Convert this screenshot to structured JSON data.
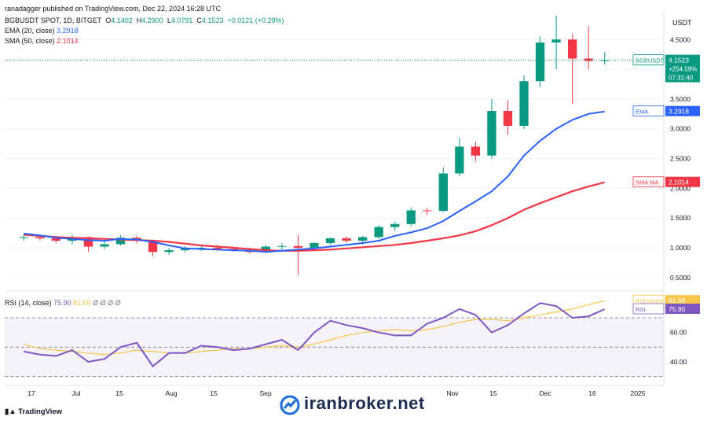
{
  "header": {
    "published": "ranadagger published on TradingView.com, Dec 22, 2024 16:28 UTC",
    "symbol": "BGBUSDT SPOT, 1D, BITGET",
    "ohlc": {
      "o_label": "O",
      "o": "4.1402",
      "h_label": "H",
      "h": "4.2900",
      "l_label": "L",
      "l": "4.0791",
      "c_label": "C",
      "c": "4.1523",
      "change": "+0.0121 (+0.29%)"
    },
    "ema_label": "EMA (20, close)",
    "ema_value": "3.2918",
    "sma_label": "SMA (50, close)",
    "sma_value": "2.1014",
    "rsi_label": "RSI (14, close)",
    "rsi_value": "75.90",
    "rsi_ma_value": "81.69",
    "rsi_extra": "Ø Ø Ø Ø"
  },
  "price_scale": {
    "currency": "USDT",
    "ticks": [
      "4.5000",
      "4.0000",
      "3.5000",
      "3.0000",
      "2.5000",
      "2.0000",
      "1.5000",
      "1.0000",
      "0.5000"
    ]
  },
  "tags": {
    "last": {
      "name": "BGBUSDT",
      "value": "4.1523",
      "change": "+254.59%",
      "countdown": "07:31:40",
      "color": "#089981"
    },
    "ema": {
      "name": "EMA",
      "value": "3.2918",
      "color": "#2962ff"
    },
    "sma": {
      "name": "SMA:MA",
      "value": "2.1014",
      "color": "#f23645"
    },
    "rsi_ma": {
      "name": "RSI-based MA",
      "value": "81.69",
      "color": "#f7c548"
    },
    "rsi": {
      "name": "RSI",
      "value": "75.90",
      "color": "#7e57c2"
    }
  },
  "rsi_scale": {
    "ticks": [
      "60.00",
      "40.00"
    ]
  },
  "time_axis": [
    "17",
    "Jul",
    "15",
    "Aug",
    "15",
    "Sep",
    "Nov",
    "15",
    "Dec",
    "16",
    "2025"
  ],
  "branding": {
    "tv": "TradingView",
    "watermark": "iranbroker.net"
  },
  "colors": {
    "up": "#089981",
    "down": "#f23645",
    "ema": "#2962ff",
    "sma": "#f23645",
    "rsi": "#7e57c2",
    "rsi_ma": "#f7c548"
  },
  "chart_data": {
    "type": "candlestick",
    "title": "BGBUSDT SPOT, 1D, BITGET",
    "price_range": [
      0.3,
      4.9
    ],
    "series": [
      {
        "name": "BGBUSDT",
        "kind": "candles",
        "points": [
          {
            "d": "Jun 10",
            "o": 1.17,
            "h": 1.22,
            "l": 1.12,
            "c": 1.18
          },
          {
            "d": "Jun 17",
            "o": 1.18,
            "h": 1.21,
            "l": 1.12,
            "c": 1.16
          },
          {
            "d": "Jun 24",
            "o": 1.16,
            "h": 1.19,
            "l": 1.08,
            "c": 1.12
          },
          {
            "d": "Jul 1",
            "o": 1.12,
            "h": 1.22,
            "l": 1.06,
            "c": 1.18
          },
          {
            "d": "Jul 8",
            "o": 1.18,
            "h": 1.19,
            "l": 0.93,
            "c": 1.02
          },
          {
            "d": "Jul 15",
            "o": 1.02,
            "h": 1.12,
            "l": 0.98,
            "c": 1.06
          },
          {
            "d": "Jul 22",
            "o": 1.06,
            "h": 1.21,
            "l": 1.04,
            "c": 1.17
          },
          {
            "d": "Jul 29",
            "o": 1.17,
            "h": 1.2,
            "l": 1.08,
            "c": 1.12
          },
          {
            "d": "Aug 5",
            "o": 1.12,
            "h": 1.14,
            "l": 0.86,
            "c": 0.93
          },
          {
            "d": "Aug 12",
            "o": 0.93,
            "h": 1.0,
            "l": 0.88,
            "c": 0.96
          },
          {
            "d": "Aug 19",
            "o": 0.96,
            "h": 1.03,
            "l": 0.92,
            "c": 0.99
          },
          {
            "d": "Aug 26",
            "o": 0.99,
            "h": 1.06,
            "l": 0.95,
            "c": 1.0
          },
          {
            "d": "Sep 2",
            "o": 1.0,
            "h": 1.05,
            "l": 0.94,
            "c": 0.98
          },
          {
            "d": "Sep 9",
            "o": 0.98,
            "h": 1.02,
            "l": 0.93,
            "c": 0.96
          },
          {
            "d": "Sep 16",
            "o": 0.96,
            "h": 1.0,
            "l": 0.9,
            "c": 0.93
          },
          {
            "d": "Sep 23",
            "o": 0.93,
            "h": 1.05,
            "l": 0.91,
            "c": 1.02
          },
          {
            "d": "Sep 30",
            "o": 1.02,
            "h": 1.08,
            "l": 0.97,
            "c": 1.03
          },
          {
            "d": "Oct 7",
            "o": 1.03,
            "h": 1.21,
            "l": 0.55,
            "c": 1.0
          },
          {
            "d": "Oct 14",
            "o": 1.0,
            "h": 1.1,
            "l": 0.97,
            "c": 1.08
          },
          {
            "d": "Oct 21",
            "o": 1.08,
            "h": 1.18,
            "l": 1.05,
            "c": 1.16
          },
          {
            "d": "Oct 28",
            "o": 1.16,
            "h": 1.19,
            "l": 1.08,
            "c": 1.12
          },
          {
            "d": "Nov 4",
            "o": 1.12,
            "h": 1.2,
            "l": 1.06,
            "c": 1.18
          },
          {
            "d": "Nov 11",
            "o": 1.18,
            "h": 1.38,
            "l": 1.15,
            "c": 1.35
          },
          {
            "d": "Nov 18",
            "o": 1.35,
            "h": 1.44,
            "l": 1.28,
            "c": 1.4
          },
          {
            "d": "Nov 25",
            "o": 1.4,
            "h": 1.68,
            "l": 1.36,
            "c": 1.63
          },
          {
            "d": "Dec 1",
            "o": 1.63,
            "h": 1.68,
            "l": 1.55,
            "c": 1.62
          },
          {
            "d": "Dec 4",
            "o": 1.62,
            "h": 2.35,
            "l": 1.6,
            "c": 2.25
          },
          {
            "d": "Dec 7",
            "o": 2.25,
            "h": 2.85,
            "l": 2.2,
            "c": 2.7
          },
          {
            "d": "Dec 10",
            "o": 2.7,
            "h": 2.78,
            "l": 2.45,
            "c": 2.55
          },
          {
            "d": "Dec 13",
            "o": 2.55,
            "h": 3.5,
            "l": 2.5,
            "c": 3.3
          },
          {
            "d": "Dec 15",
            "o": 3.3,
            "h": 3.48,
            "l": 2.9,
            "c": 3.05
          },
          {
            "d": "Dec 16",
            "o": 3.05,
            "h": 3.9,
            "l": 3.0,
            "c": 3.8
          },
          {
            "d": "Dec 17",
            "o": 3.8,
            "h": 4.55,
            "l": 3.7,
            "c": 4.45
          },
          {
            "d": "Dec 18",
            "o": 4.45,
            "h": 4.9,
            "l": 4.0,
            "c": 4.5
          },
          {
            "d": "Dec 19",
            "o": 4.5,
            "h": 4.6,
            "l": 3.42,
            "c": 4.18
          },
          {
            "d": "Dec 20",
            "o": 4.18,
            "h": 4.72,
            "l": 4.0,
            "c": 4.14
          },
          {
            "d": "Dec 22",
            "o": 4.1402,
            "h": 4.29,
            "l": 4.0791,
            "c": 4.1523
          }
        ]
      },
      {
        "name": "EMA (20, close)",
        "kind": "line",
        "values": [
          1.24,
          1.21,
          1.17,
          1.15,
          1.13,
          1.12,
          1.15,
          1.14,
          1.1,
          1.04,
          0.99,
          0.98,
          0.97,
          0.96,
          0.95,
          0.93,
          0.95,
          0.97,
          0.99,
          1.02,
          1.05,
          1.08,
          1.12,
          1.2,
          1.26,
          1.33,
          1.45,
          1.62,
          1.78,
          1.95,
          2.2,
          2.55,
          2.8,
          3.0,
          3.15,
          3.25,
          3.2918
        ]
      },
      {
        "name": "SMA (50, close)",
        "kind": "line",
        "values": [
          1.22,
          1.2,
          1.18,
          1.17,
          1.16,
          1.15,
          1.14,
          1.13,
          1.12,
          1.1,
          1.07,
          1.04,
          1.02,
          1.0,
          0.98,
          0.96,
          0.95,
          0.95,
          0.96,
          0.97,
          0.99,
          1.01,
          1.03,
          1.05,
          1.08,
          1.12,
          1.16,
          1.21,
          1.28,
          1.38,
          1.5,
          1.64,
          1.75,
          1.85,
          1.95,
          2.03,
          2.1014
        ]
      }
    ],
    "rsi": {
      "range": [
        25,
        85
      ],
      "bands": [
        30,
        50,
        70
      ],
      "rsi_values": [
        47,
        45,
        44,
        48,
        40,
        42,
        50,
        53,
        37,
        46,
        46,
        51,
        50,
        48,
        49,
        52,
        55,
        48,
        60,
        68,
        65,
        63,
        60,
        58,
        58,
        66,
        70,
        76,
        72,
        60,
        65,
        73,
        80,
        78,
        70,
        71,
        75.9
      ],
      "ma_values": [
        52,
        49,
        48,
        47,
        46,
        45,
        46,
        48,
        47,
        46,
        46,
        47,
        48,
        49,
        49,
        50,
        51,
        50,
        52,
        55,
        58,
        60,
        61,
        62,
        61,
        62,
        64,
        67,
        69,
        69,
        68,
        70,
        72,
        74,
        76,
        79,
        81.69
      ]
    }
  }
}
